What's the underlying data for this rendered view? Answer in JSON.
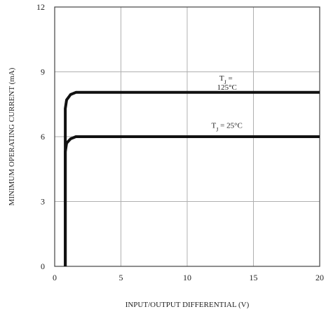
{
  "chart_data": {
    "type": "line",
    "title": "",
    "xlabel": "INPUT/OUTPUT DIFFERENTIAL (V)",
    "ylabel": "MINIMUM OPERATING CURRENT (mA)",
    "xlim": [
      0,
      20
    ],
    "ylim": [
      0,
      12
    ],
    "xticks": [
      "0",
      "5",
      "10",
      "15",
      "20"
    ],
    "yticks": [
      "0",
      "3",
      "6",
      "9",
      "12"
    ],
    "grid": true,
    "series": [
      {
        "name": "TJ = 25°C",
        "x": [
          0.8,
          0.8,
          0.9,
          1.2,
          1.6,
          2.5,
          20
        ],
        "y": [
          0,
          5.3,
          5.7,
          5.9,
          6.0,
          6.0,
          6.0
        ]
      },
      {
        "name": "TJ = 125°C",
        "x": [
          0.8,
          0.8,
          0.9,
          1.2,
          1.6,
          2.5,
          20
        ],
        "y": [
          0,
          7.3,
          7.7,
          7.95,
          8.05,
          8.05,
          8.05
        ]
      }
    ],
    "annotations": [
      {
        "text": "TJ = 125°C",
        "x": 13,
        "y": 8.6
      },
      {
        "text": "TJ = 25°C",
        "x": 13,
        "y": 6.4
      }
    ]
  }
}
